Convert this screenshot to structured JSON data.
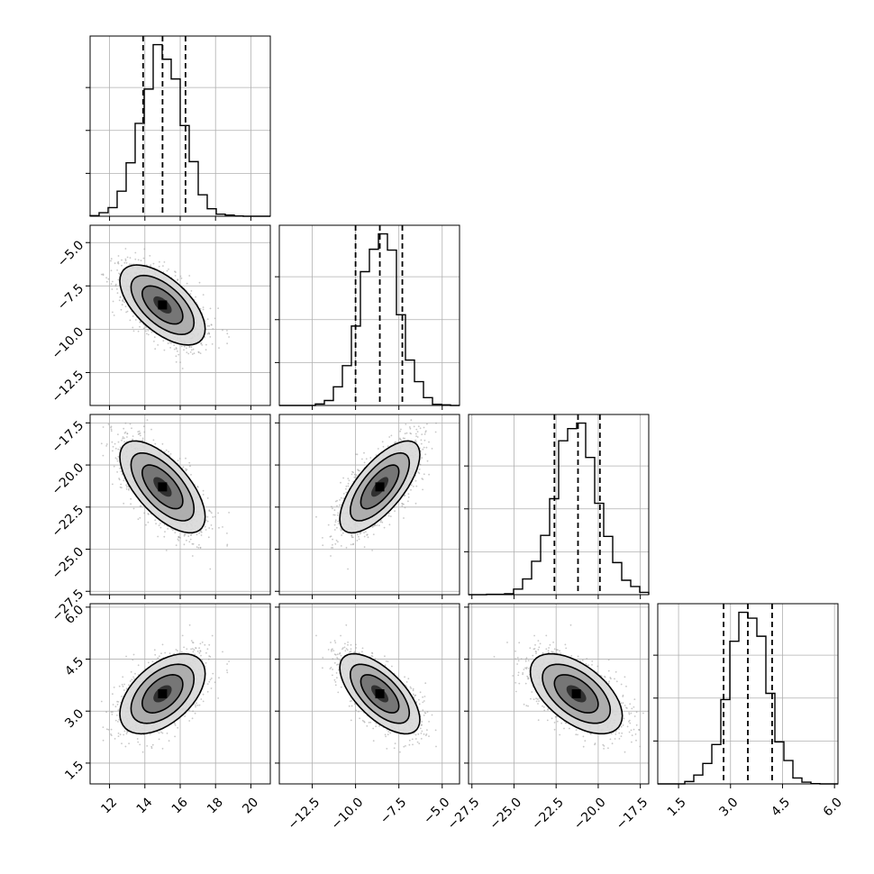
{
  "chart_data": {
    "type": "corner",
    "title": "",
    "grid": true,
    "quantile_lines": "dashed",
    "colors": {
      "line": "#000000",
      "grid": "#b0b0b0",
      "scatter": "#9a9a9a"
    },
    "parameters": [
      {
        "id": "p0",
        "range": [
          10.9,
          21.1
        ],
        "mean": 15.0,
        "sd": 1.15,
        "quantiles": [
          13.9,
          15.0,
          16.3
        ],
        "ticks": [
          12,
          14,
          16,
          18,
          20
        ],
        "tick_labels": [
          "12",
          "14",
          "16",
          "18",
          "20"
        ]
      },
      {
        "id": "p1",
        "range": [
          -14.4,
          -4.0
        ],
        "mean": -8.6,
        "sd": 1.1,
        "quantiles": [
          -10.0,
          -8.6,
          -7.3
        ],
        "ticks": [
          -12.5,
          -10.0,
          -7.5,
          -5.0
        ],
        "tick_labels": [
          "−12.5",
          "−10.0",
          "−7.5",
          "−5.0"
        ]
      },
      {
        "id": "p2",
        "range": [
          -27.7,
          -17.0
        ],
        "mean": -21.3,
        "sd": 1.3,
        "quantiles": [
          -22.6,
          -21.2,
          -19.9
        ],
        "ticks": [
          -27.5,
          -25.0,
          -22.5,
          -20.0,
          -17.5
        ],
        "tick_labels": [
          "−27.5",
          "−25.0",
          "−22.5",
          "−20.0",
          "−17.5"
        ]
      },
      {
        "id": "p3",
        "range": [
          0.9,
          6.1
        ],
        "mean": 3.5,
        "sd": 0.55,
        "quantiles": [
          2.8,
          3.5,
          4.2
        ],
        "ticks": [
          1.5,
          3.0,
          4.5,
          6.0
        ],
        "tick_labels": [
          "1.5",
          "3.0",
          "4.5",
          "6.0"
        ]
      }
    ],
    "correlations": [
      {
        "pair": [
          0,
          1
        ],
        "rho": -0.6
      },
      {
        "pair": [
          0,
          2
        ],
        "rho": -0.65
      },
      {
        "pair": [
          0,
          3
        ],
        "rho": 0.5
      },
      {
        "pair": [
          1,
          2
        ],
        "rho": 0.7
      },
      {
        "pair": [
          1,
          3
        ],
        "rho": -0.65
      },
      {
        "pair": [
          2,
          3
        ],
        "rho": -0.55
      }
    ]
  }
}
